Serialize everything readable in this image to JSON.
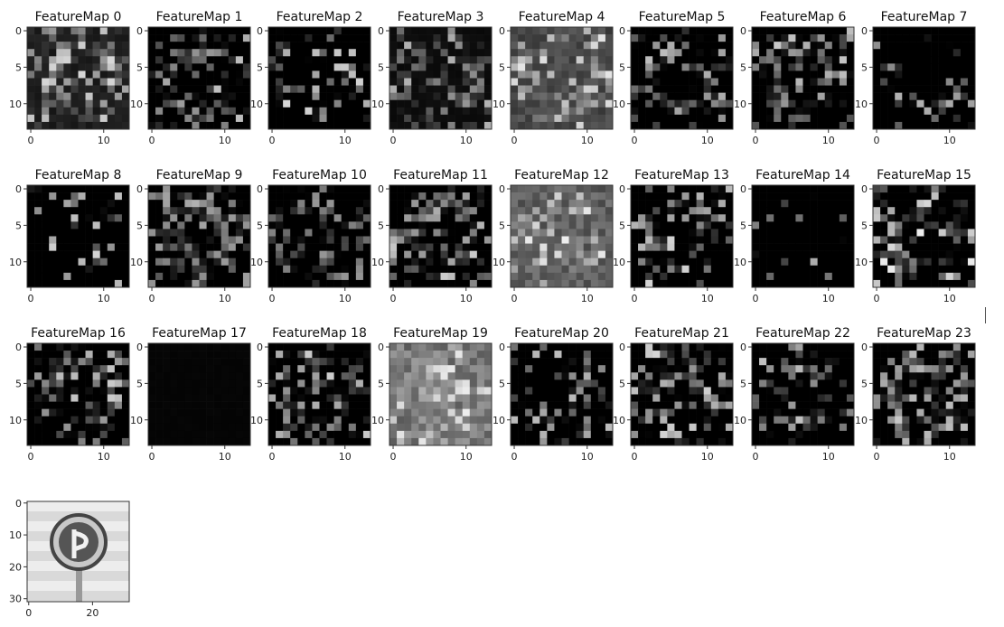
{
  "chart_data": [
    {
      "type": "heatmap",
      "title": "FeatureMap 0",
      "xticks": [
        "0",
        "10"
      ],
      "yticks": [
        "0",
        "5",
        "10"
      ],
      "seed": 11,
      "density": 0.62,
      "bg": 0.12,
      "peak": 0.85
    },
    {
      "type": "heatmap",
      "title": "FeatureMap 1",
      "xticks": [
        "0",
        "10"
      ],
      "yticks": [
        "0",
        "5",
        "10"
      ],
      "seed": 23,
      "density": 0.48,
      "bg": 0.0,
      "peak": 0.75
    },
    {
      "type": "heatmap",
      "title": "FeatureMap 2",
      "xticks": [
        "0",
        "10"
      ],
      "yticks": [
        "0",
        "5",
        "10"
      ],
      "seed": 37,
      "density": 0.3,
      "bg": 0.0,
      "peak": 0.85
    },
    {
      "type": "heatmap",
      "title": "FeatureMap 3",
      "xticks": [
        "0",
        "10"
      ],
      "yticks": [
        "0",
        "5",
        "10"
      ],
      "seed": 41,
      "density": 0.55,
      "bg": 0.05,
      "peak": 0.7
    },
    {
      "type": "heatmap",
      "title": "FeatureMap 4",
      "xticks": [
        "0",
        "10"
      ],
      "yticks": [
        "0",
        "5",
        "10"
      ],
      "seed": 53,
      "density": 0.6,
      "bg": 0.3,
      "peak": 0.9
    },
    {
      "type": "heatmap",
      "title": "FeatureMap 5",
      "xticks": [
        "0",
        "10"
      ],
      "yticks": [
        "0",
        "5",
        "10"
      ],
      "seed": 67,
      "density": 0.4,
      "bg": 0.0,
      "peak": 0.75
    },
    {
      "type": "heatmap",
      "title": "FeatureMap 6",
      "xticks": [
        "0",
        "10"
      ],
      "yticks": [
        "0",
        "5",
        "10"
      ],
      "seed": 71,
      "density": 0.45,
      "bg": 0.0,
      "peak": 0.8
    },
    {
      "type": "heatmap",
      "title": "FeatureMap 7",
      "xticks": [
        "0",
        "10"
      ],
      "yticks": [
        "0",
        "5",
        "10"
      ],
      "seed": 83,
      "density": 0.15,
      "bg": 0.0,
      "peak": 0.7
    },
    {
      "type": "heatmap",
      "title": "FeatureMap 8",
      "xticks": [
        "0",
        "10"
      ],
      "yticks": [
        "0",
        "5",
        "10"
      ],
      "seed": 97,
      "density": 0.18,
      "bg": 0.0,
      "peak": 0.85
    },
    {
      "type": "heatmap",
      "title": "FeatureMap 9",
      "xticks": [
        "0",
        "10"
      ],
      "yticks": [
        "0",
        "5",
        "10"
      ],
      "seed": 101,
      "density": 0.5,
      "bg": 0.0,
      "peak": 0.7
    },
    {
      "type": "heatmap",
      "title": "FeatureMap 10",
      "xticks": [
        "0",
        "10"
      ],
      "yticks": [
        "0",
        "5",
        "10"
      ],
      "seed": 113,
      "density": 0.35,
      "bg": 0.0,
      "peak": 0.6
    },
    {
      "type": "heatmap",
      "title": "FeatureMap 11",
      "xticks": [
        "0",
        "10"
      ],
      "yticks": [
        "0",
        "5",
        "10"
      ],
      "seed": 127,
      "density": 0.45,
      "bg": 0.0,
      "peak": 0.8
    },
    {
      "type": "heatmap",
      "title": "FeatureMap 12",
      "xticks": [
        "0",
        "10"
      ],
      "yticks": [
        "0",
        "5",
        "10"
      ],
      "seed": 131,
      "density": 0.55,
      "bg": 0.4,
      "peak": 0.95
    },
    {
      "type": "heatmap",
      "title": "FeatureMap 13",
      "xticks": [
        "0",
        "10"
      ],
      "yticks": [
        "0",
        "5",
        "10"
      ],
      "seed": 149,
      "density": 0.35,
      "bg": 0.0,
      "peak": 0.85
    },
    {
      "type": "heatmap",
      "title": "FeatureMap 14",
      "xticks": [
        "0",
        "10"
      ],
      "yticks": [
        "0",
        "5",
        "10"
      ],
      "seed": 151,
      "density": 0.08,
      "bg": 0.0,
      "peak": 0.9
    },
    {
      "type": "heatmap",
      "title": "FeatureMap 15",
      "xticks": [
        "0",
        "10"
      ],
      "yticks": [
        "0",
        "5",
        "10"
      ],
      "seed": 163,
      "density": 0.4,
      "bg": 0.0,
      "peak": 0.95
    },
    {
      "type": "heatmap",
      "title": "FeatureMap 16",
      "xticks": [
        "0",
        "10"
      ],
      "yticks": [
        "0",
        "5",
        "10"
      ],
      "seed": 173,
      "density": 0.45,
      "bg": 0.0,
      "peak": 0.8
    },
    {
      "type": "heatmap",
      "title": "FeatureMap 17",
      "xticks": [
        "0",
        "10"
      ],
      "yticks": [
        "0",
        "5",
        "10"
      ],
      "seed": 179,
      "density": 0.0,
      "bg": 0.02,
      "peak": 0.05
    },
    {
      "type": "heatmap",
      "title": "FeatureMap 18",
      "xticks": [
        "0",
        "10"
      ],
      "yticks": [
        "0",
        "5",
        "10"
      ],
      "seed": 191,
      "density": 0.45,
      "bg": 0.0,
      "peak": 0.8
    },
    {
      "type": "heatmap",
      "title": "FeatureMap 19",
      "xticks": [
        "0",
        "10"
      ],
      "yticks": [
        "0",
        "5",
        "10"
      ],
      "seed": 193,
      "density": 0.6,
      "bg": 0.5,
      "peak": 0.95
    },
    {
      "type": "heatmap",
      "title": "FeatureMap 20",
      "xticks": [
        "0",
        "10"
      ],
      "yticks": [
        "0",
        "5",
        "10"
      ],
      "seed": 197,
      "density": 0.35,
      "bg": 0.0,
      "peak": 0.75
    },
    {
      "type": "heatmap",
      "title": "FeatureMap 21",
      "xticks": [
        "0",
        "10"
      ],
      "yticks": [
        "0",
        "5",
        "10"
      ],
      "seed": 199,
      "density": 0.38,
      "bg": 0.0,
      "peak": 0.85
    },
    {
      "type": "heatmap",
      "title": "FeatureMap 22",
      "xticks": [
        "0",
        "10"
      ],
      "yticks": [
        "0",
        "5",
        "10"
      ],
      "seed": 211,
      "density": 0.35,
      "bg": 0.0,
      "peak": 0.8
    },
    {
      "type": "heatmap",
      "title": "FeatureMap 23",
      "xticks": [
        "0",
        "10"
      ],
      "yticks": [
        "0",
        "5",
        "10"
      ],
      "seed": 223,
      "density": 0.5,
      "bg": 0.0,
      "peak": 0.8
    },
    {
      "type": "heatmap",
      "title": "",
      "xticks": [
        "0",
        "20"
      ],
      "yticks": [
        "0",
        "10",
        "20",
        "30"
      ],
      "image": "traffic-sign-input"
    }
  ]
}
